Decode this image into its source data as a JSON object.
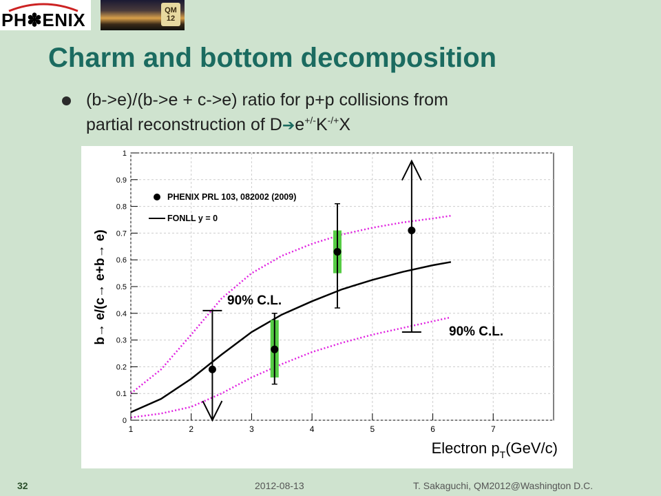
{
  "header": {
    "logo_text": "PH✽ENIX",
    "badge_line1": "QM",
    "badge_line2": "12"
  },
  "slide": {
    "title": "Charm and bottom decomposition",
    "bullet_line1": "(b->e)/(b->e + c->e) ratio for p+p collisions from",
    "bullet_line2_a": "partial reconstruction of D",
    "bullet_arrow": "➔",
    "bullet_line2_b": "e",
    "bullet_sup1": "+/-",
    "bullet_line2_c": "K",
    "bullet_sup2": "-/+",
    "bullet_line2_d": "X"
  },
  "footer": {
    "page_number": "32",
    "date": "2012-08-13",
    "author": "T. Sakaguchi, QM2012@Washington D.C."
  },
  "colors": {
    "background": "#cfe3cf",
    "title": "#1b6b60",
    "magenta_band": "#e020e0",
    "syst_box": "#55cc44"
  },
  "chart_data": {
    "type": "scatter",
    "ylabel": "b→ e/(c→ e+b→ e)",
    "xlabel_main": "Electron p",
    "xlabel_sub": "T",
    "xlabel_unit": "(GeV/c)",
    "xlim": [
      1,
      8
    ],
    "ylim": [
      0,
      1
    ],
    "x_ticks": [
      1,
      2,
      3,
      4,
      5,
      6,
      7
    ],
    "y_ticks": [
      0,
      0.1,
      0.2,
      0.3,
      0.4,
      0.5,
      0.6,
      0.7,
      0.8,
      0.9,
      1
    ],
    "y_tick_labels": [
      "0",
      "0.1",
      "0.2",
      "0.3",
      "0.4",
      "0.5",
      "0.6",
      "0.7",
      "0.8",
      "0.9",
      "1"
    ],
    "legend": {
      "data_label": "PHENIX PRL 103, 082002 (2009)",
      "line_label": "FONLL y = 0",
      "position": "top-left"
    },
    "data_points": [
      {
        "x": 2.35,
        "y": 0.19,
        "err_low": 0.0,
        "err_high": 0.41,
        "syst_low": null,
        "syst_high": null,
        "limit": "upper"
      },
      {
        "x": 3.38,
        "y": 0.265,
        "err_low": 0.135,
        "err_high": 0.4,
        "syst_low": 0.16,
        "syst_high": 0.375,
        "limit": null
      },
      {
        "x": 4.42,
        "y": 0.63,
        "err_low": 0.42,
        "err_high": 0.81,
        "syst_low": 0.55,
        "syst_high": 0.71,
        "limit": null
      },
      {
        "x": 5.65,
        "y": 0.71,
        "err_low": 0.33,
        "err_high": 0.97,
        "syst_low": null,
        "syst_high": null,
        "limit": "lower"
      }
    ],
    "fonll_central": [
      [
        1.0,
        0.03
      ],
      [
        1.5,
        0.08
      ],
      [
        2.0,
        0.155
      ],
      [
        2.5,
        0.245
      ],
      [
        3.0,
        0.33
      ],
      [
        3.5,
        0.395
      ],
      [
        4.0,
        0.445
      ],
      [
        4.5,
        0.49
      ],
      [
        5.0,
        0.525
      ],
      [
        5.5,
        0.555
      ],
      [
        6.0,
        0.58
      ],
      [
        6.3,
        0.592
      ]
    ],
    "fonll_upper": [
      [
        1.0,
        0.1
      ],
      [
        1.5,
        0.19
      ],
      [
        2.0,
        0.32
      ],
      [
        2.5,
        0.455
      ],
      [
        3.0,
        0.55
      ],
      [
        3.5,
        0.615
      ],
      [
        4.0,
        0.66
      ],
      [
        4.5,
        0.695
      ],
      [
        5.0,
        0.72
      ],
      [
        5.5,
        0.74
      ],
      [
        6.0,
        0.755
      ],
      [
        6.3,
        0.765
      ]
    ],
    "fonll_lower": [
      [
        1.0,
        0.01
      ],
      [
        1.5,
        0.025
      ],
      [
        2.0,
        0.05
      ],
      [
        2.5,
        0.1
      ],
      [
        3.0,
        0.16
      ],
      [
        3.5,
        0.21
      ],
      [
        4.0,
        0.255
      ],
      [
        4.5,
        0.29
      ],
      [
        5.0,
        0.32
      ],
      [
        5.5,
        0.345
      ],
      [
        6.0,
        0.37
      ],
      [
        6.3,
        0.385
      ]
    ],
    "annotations": [
      {
        "text": "90% C.L.",
        "x": 2.5,
        "y": 0.43
      },
      {
        "text": "90% C.L.",
        "x": 6.0,
        "y": 0.33
      }
    ]
  }
}
